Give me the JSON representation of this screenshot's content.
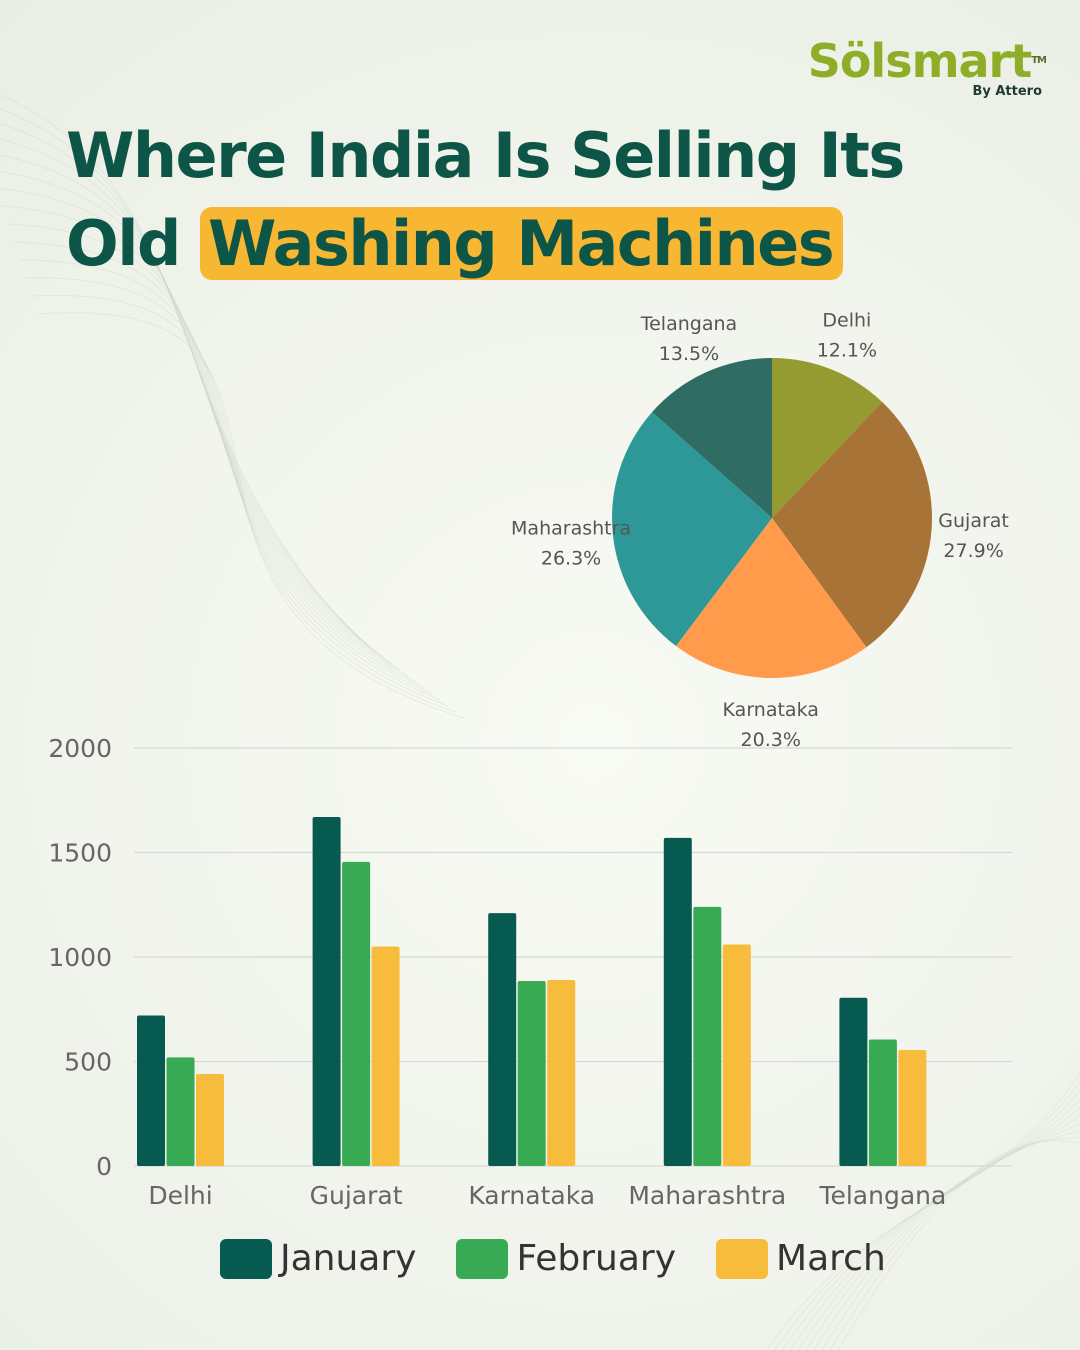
{
  "logo": {
    "name": "Sölsmart",
    "tm": "TM",
    "byline": "By Attero"
  },
  "title": {
    "line1": "Where India Is Selling Its",
    "line2_plain": "Old",
    "line2_highlight": "Washing Machines"
  },
  "colors": {
    "accent": "#f7b733",
    "title": "#0d5547",
    "january": "#075a4f",
    "february": "#37aa53",
    "march": "#f8bc3d",
    "pie_delhi": "#959a31",
    "pie_gujarat": "#a87337",
    "pie_karnataka": "#ff9b4a",
    "pie_maharashtra": "#2e9898",
    "pie_telangana": "#2f6d64"
  },
  "legend": [
    {
      "label": "January",
      "color": "#075a4f"
    },
    {
      "label": "February",
      "color": "#37aa53"
    },
    {
      "label": "March",
      "color": "#f8bc3d"
    }
  ],
  "chart_data": [
    {
      "type": "pie",
      "slices": [
        {
          "label": "Delhi",
          "value": 12.1,
          "text": "12.1%",
          "color": "#959a31"
        },
        {
          "label": "Gujarat",
          "value": 27.9,
          "text": "27.9%",
          "color": "#a87337"
        },
        {
          "label": "Karnataka",
          "value": 20.3,
          "text": "20.3%",
          "color": "#ff9b4a"
        },
        {
          "label": "Maharashtra",
          "value": 26.3,
          "text": "26.3%",
          "color": "#2e9898"
        },
        {
          "label": "Telangana",
          "value": 13.5,
          "text": "13.5%",
          "color": "#2f6d64"
        }
      ]
    },
    {
      "type": "bar",
      "categories": [
        "Delhi",
        "Gujarat",
        "Karnataka",
        "Maharashtra",
        "Telangana"
      ],
      "series": [
        {
          "name": "January",
          "values": [
            720,
            1670,
            1210,
            1570,
            805
          ],
          "color": "#075a4f"
        },
        {
          "name": "February",
          "values": [
            520,
            1455,
            885,
            1240,
            605
          ],
          "color": "#37aa53"
        },
        {
          "name": "March",
          "values": [
            440,
            1050,
            890,
            1060,
            555
          ],
          "color": "#f8bc3d"
        }
      ],
      "yticks": [
        "0",
        "500",
        "1000",
        "1500",
        "2000"
      ],
      "ylim": [
        0,
        2000
      ],
      "grid": true
    }
  ]
}
